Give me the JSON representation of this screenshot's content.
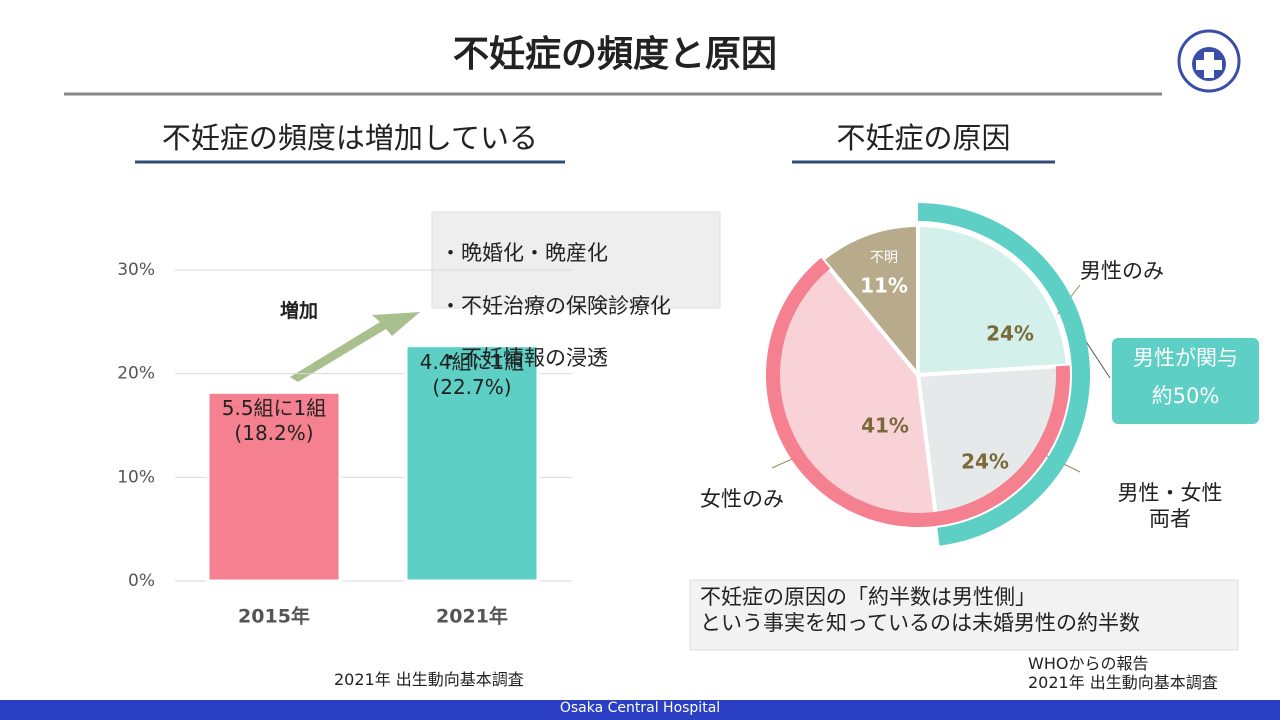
{
  "header": {
    "title": "不妊症の頻度と原因"
  },
  "chart_data": [
    {
      "type": "bar",
      "title": "不妊症の頻度は増加している",
      "categories": [
        "2015年",
        "2021年"
      ],
      "values": [
        18.2,
        22.7
      ],
      "value_labels": [
        "5.5組に1組\n(18.2%)",
        "4.4組に1組\n(22.7%)"
      ],
      "colors": [
        "#f5808f",
        "#5dcfc4"
      ],
      "ylim": [
        0,
        30
      ],
      "yticks": [
        {
          "value": 0,
          "label": "0%"
        },
        {
          "value": 10,
          "label": "10%"
        },
        {
          "value": 20,
          "label": "20%"
        },
        {
          "value": 30,
          "label": "30%"
        }
      ],
      "grid": true,
      "annotation": "増加",
      "notes": [
        "・晩婚化・晩産化",
        "・不妊治療の保険診療化",
        "・不妊情報の浸透"
      ],
      "source": "2021年 出生動向基本調査"
    },
    {
      "type": "pie",
      "title": "不妊症の原因",
      "categories": [
        "男性のみ",
        "男性・女性\n両者",
        "女性のみ",
        "不明"
      ],
      "values": [
        24,
        24,
        41,
        11
      ],
      "value_labels": [
        "24%",
        "24%",
        "41%",
        "11%"
      ],
      "colors": [
        "#d4f0eb",
        "#e6e9ea",
        "#f9d2d8",
        "#b8ab8c"
      ],
      "callout": "男性が関与\n約50%",
      "note": "不妊症の原因の「約半数は男性側」\nという事実を知っているのは未婚男性の約半数",
      "source": "WHOからの報告\n2021年 出生動向基本調査"
    }
  ],
  "footer": "Osaka Central Hospital"
}
